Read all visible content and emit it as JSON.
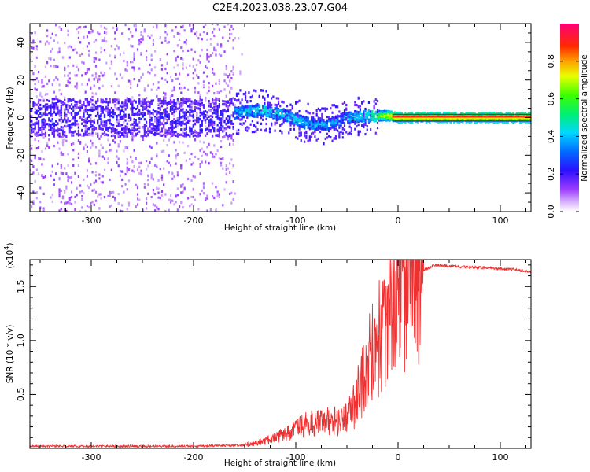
{
  "chart_data": [
    {
      "type": "heatmap",
      "title": "C2E4.2023.038.23.07.G04",
      "xlabel": "Height of straight line (km)",
      "ylabel": "Frequency (Hz)",
      "xlim": [
        -360,
        130
      ],
      "ylim": [
        -50,
        50
      ],
      "xticks": [
        -300,
        -200,
        -100,
        0,
        100
      ],
      "xtick_labels": [
        "-300",
        "-200",
        "-100",
        "0",
        "100"
      ],
      "yticks": [
        -40,
        -20,
        0,
        20,
        40
      ],
      "ytick_labels": [
        "-40",
        "-20",
        "0",
        "20",
        "40"
      ],
      "colorbar": {
        "label": "Normalized spectral amplitude",
        "range": [
          0,
          1
        ],
        "ticks": [
          0.0,
          0.2,
          0.4,
          0.6,
          0.8
        ],
        "tick_labels": [
          "0.0",
          "0.2",
          "0.4",
          "0.6",
          "0.8"
        ],
        "colormap": [
          "#ffffff",
          "#b060ff",
          "#3010ff",
          "#00c8ff",
          "#00ff40",
          "#f0ff00",
          "#ff2000",
          "#ff0080"
        ]
      },
      "ridge": [
        {
          "x": -170,
          "y": 2,
          "amp": 0.45
        },
        {
          "x": -150,
          "y": 3,
          "amp": 0.5
        },
        {
          "x": -130,
          "y": 4,
          "amp": 0.55
        },
        {
          "x": -110,
          "y": 1,
          "amp": 0.5
        },
        {
          "x": -90,
          "y": -3,
          "amp": 0.5
        },
        {
          "x": -70,
          "y": -4,
          "amp": 0.45
        },
        {
          "x": -50,
          "y": 0,
          "amp": 0.45
        },
        {
          "x": -30,
          "y": 1,
          "amp": 0.55
        },
        {
          "x": -10,
          "y": 1,
          "amp": 0.8
        },
        {
          "x": 0,
          "y": 0,
          "amp": 0.9
        },
        {
          "x": 130,
          "y": 0,
          "amp": 0.9
        }
      ]
    },
    {
      "type": "line",
      "title": "",
      "xlabel": "Height of straight line (km)",
      "ylabel": "SNR (10 * v/v)",
      "y_multiplier_label": "(x10",
      "y_multiplier_exp": "4",
      "xlim": [
        -360,
        130
      ],
      "ylim": [
        0,
        1.75
      ],
      "xticks": [
        -300,
        -200,
        -100,
        0,
        100
      ],
      "xtick_labels": [
        "-300",
        "-200",
        "-100",
        "0",
        "100"
      ],
      "yticks": [
        0.5,
        1.0,
        1.5
      ],
      "ytick_labels": [
        "0.5",
        "1.0",
        "1.5"
      ],
      "color": "#ee3030",
      "series": [
        {
          "name": "SNR",
          "x": [
            -360,
            -300,
            -200,
            -150,
            -130,
            -110,
            -90,
            -70,
            -55,
            -45,
            -35,
            -25,
            -15,
            -5,
            5,
            15,
            25,
            35,
            50,
            70,
            90,
            110,
            130
          ],
          "values": [
            0.02,
            0.02,
            0.02,
            0.03,
            0.06,
            0.12,
            0.2,
            0.22,
            0.25,
            0.35,
            0.6,
            0.9,
            1.1,
            1.25,
            1.4,
            1.55,
            1.65,
            1.7,
            1.69,
            1.68,
            1.67,
            1.66,
            1.64
          ]
        }
      ]
    }
  ]
}
